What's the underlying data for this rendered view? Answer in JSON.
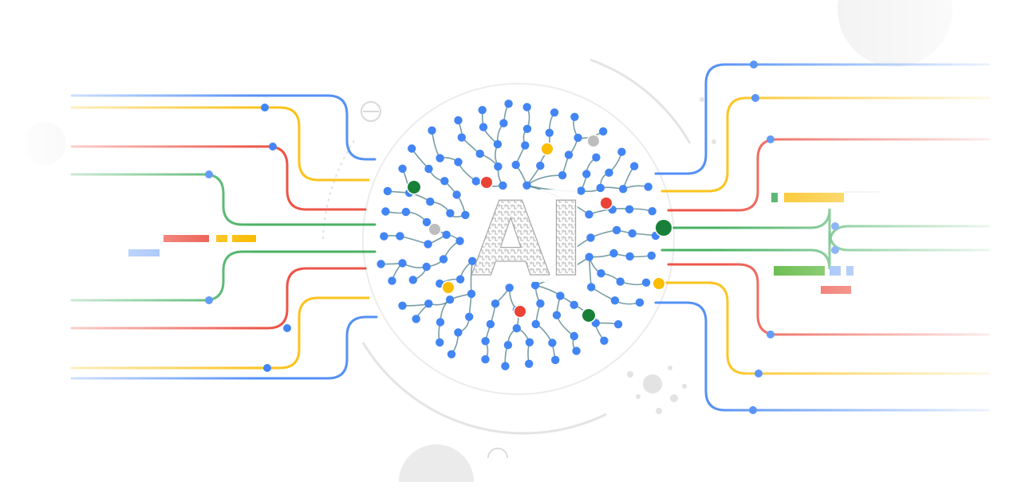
{
  "illustration": {
    "center_text": "AI",
    "palette": {
      "blue": "#4285f4",
      "red": "#ea4335",
      "yellow": "#fbbc04",
      "green": "#34a853",
      "dark_green": "#188038",
      "grey": "#bdbdbd",
      "light_grey": "#e8e8e8",
      "teal_branch": "#4a7c85"
    },
    "wires_left_colors": [
      "blue",
      "yellow",
      "red",
      "green",
      "green",
      "red",
      "yellow",
      "blue"
    ],
    "wires_right_colors": [
      "blue",
      "yellow",
      "red",
      "green",
      "green",
      "red",
      "yellow",
      "blue"
    ]
  }
}
